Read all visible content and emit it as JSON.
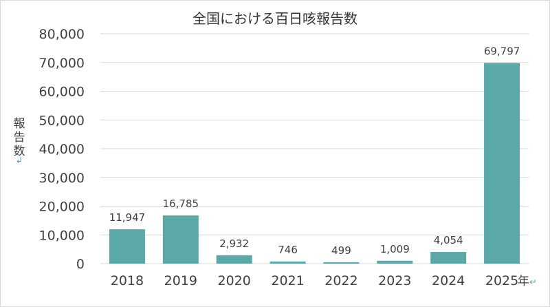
{
  "chart_data": {
    "type": "bar",
    "title": "全国における百日咳報告数",
    "categories": [
      "2018",
      "2019",
      "2020",
      "2021",
      "2022",
      "2023",
      "2024",
      "2025"
    ],
    "values": [
      11947,
      16785,
      2932,
      746,
      499,
      1009,
      4054,
      69797
    ],
    "value_labels": [
      "11,947",
      "16,785",
      "2,932",
      "746",
      "499",
      "1,009",
      "4,054",
      "69,797"
    ],
    "xlabel": "年",
    "ylabel": "報告数",
    "ylim": [
      0,
      80000
    ],
    "yticks": [
      0,
      10000,
      20000,
      30000,
      40000,
      50000,
      60000,
      70000,
      80000
    ],
    "ytick_labels": [
      "0",
      "10,000",
      "20,000",
      "30,000",
      "40,000",
      "50,000",
      "60,000",
      "70,000",
      "80,000"
    ],
    "grid": true,
    "legend": "none",
    "bar_color": "#5ba8a8",
    "grid_color": "#d9d9d9",
    "text_color": "#404040",
    "mark_color": "#6aa8c8"
  }
}
